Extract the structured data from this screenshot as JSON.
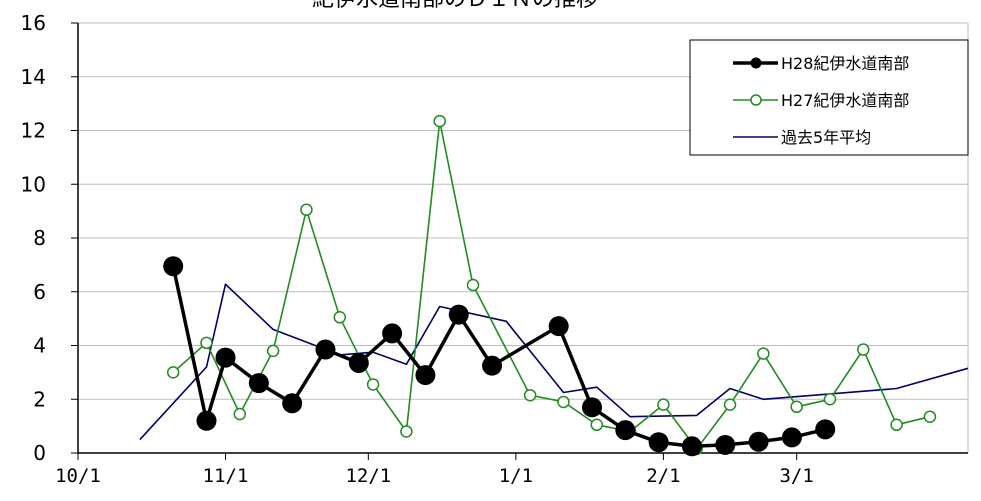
{
  "chart_data": {
    "type": "line",
    "title": "紀伊水道南部のＤＩＮの推移",
    "xlabel": "",
    "ylabel": "",
    "ylim": [
      0,
      16
    ],
    "yticks": [
      0,
      2,
      4,
      6,
      8,
      10,
      12,
      14,
      16
    ],
    "xlim": [
      "10/1",
      "4/6"
    ],
    "xticks": [
      "10/1",
      "11/1",
      "12/1",
      "1/1",
      "2/1",
      "3/1"
    ],
    "grid": true,
    "legend_position": "top-right",
    "series": [
      {
        "name": "H28紀伊水道南部",
        "color": "#000000",
        "marker": "filled-circle",
        "points": [
          [
            "10/21",
            6.95
          ],
          [
            "10/28",
            1.2
          ],
          [
            "11/1",
            3.55
          ],
          [
            "11/8",
            2.6
          ],
          [
            "11/15",
            1.85
          ],
          [
            "11/22",
            3.85
          ],
          [
            "11/29",
            3.35
          ],
          [
            "12/6",
            4.45
          ],
          [
            "12/13",
            2.9
          ],
          [
            "12/20",
            5.15
          ],
          [
            "12/27",
            3.25
          ],
          [
            "1/10",
            4.72
          ],
          [
            "1/17",
            1.7
          ],
          [
            "1/24",
            0.85
          ],
          [
            "1/31",
            0.4
          ],
          [
            "2/7",
            0.25
          ],
          [
            "2/14",
            0.3
          ],
          [
            "2/21",
            0.42
          ],
          [
            "2/28",
            0.58
          ],
          [
            "3/7",
            0.88
          ]
        ]
      },
      {
        "name": "H27紀伊水道南部",
        "color": "#228b22",
        "marker": "open-circle",
        "points": [
          [
            "10/21",
            3.0
          ],
          [
            "10/28",
            4.1
          ],
          [
            "11/4",
            1.45
          ],
          [
            "11/11",
            3.8
          ],
          [
            "11/18",
            9.05
          ],
          [
            "11/25",
            5.05
          ],
          [
            "12/2",
            2.55
          ],
          [
            "12/9",
            0.8
          ],
          [
            "12/16",
            12.35
          ],
          [
            "12/23",
            6.25
          ],
          [
            "1/4",
            2.15
          ],
          [
            "1/11",
            1.9
          ],
          [
            "1/18",
            1.05
          ],
          [
            "1/25",
            0.8
          ],
          [
            "2/1",
            1.8
          ],
          [
            "2/8",
            0.15
          ],
          [
            "2/15",
            1.8
          ],
          [
            "2/22",
            3.7
          ],
          [
            "3/1",
            1.72
          ],
          [
            "3/8",
            2.0
          ],
          [
            "3/15",
            3.85
          ],
          [
            "3/22",
            1.05
          ],
          [
            "3/29",
            1.35
          ]
        ]
      },
      {
        "name": "過去5年平均",
        "color": "#000066",
        "marker": "none",
        "points": [
          [
            "10/14",
            0.5
          ],
          [
            "10/28",
            3.2
          ],
          [
            "11/1",
            6.28
          ],
          [
            "11/11",
            4.6
          ],
          [
            "11/25",
            3.65
          ],
          [
            "12/2",
            3.75
          ],
          [
            "12/9",
            3.3
          ],
          [
            "12/16",
            5.45
          ],
          [
            "12/30",
            4.9
          ],
          [
            "1/11",
            2.25
          ],
          [
            "1/18",
            2.45
          ],
          [
            "1/25",
            1.35
          ],
          [
            "2/8",
            1.4
          ],
          [
            "2/15",
            2.4
          ],
          [
            "2/22",
            2.0
          ],
          [
            "3/8",
            2.2
          ],
          [
            "3/22",
            2.4
          ],
          [
            "4/6",
            3.15
          ]
        ]
      }
    ]
  }
}
